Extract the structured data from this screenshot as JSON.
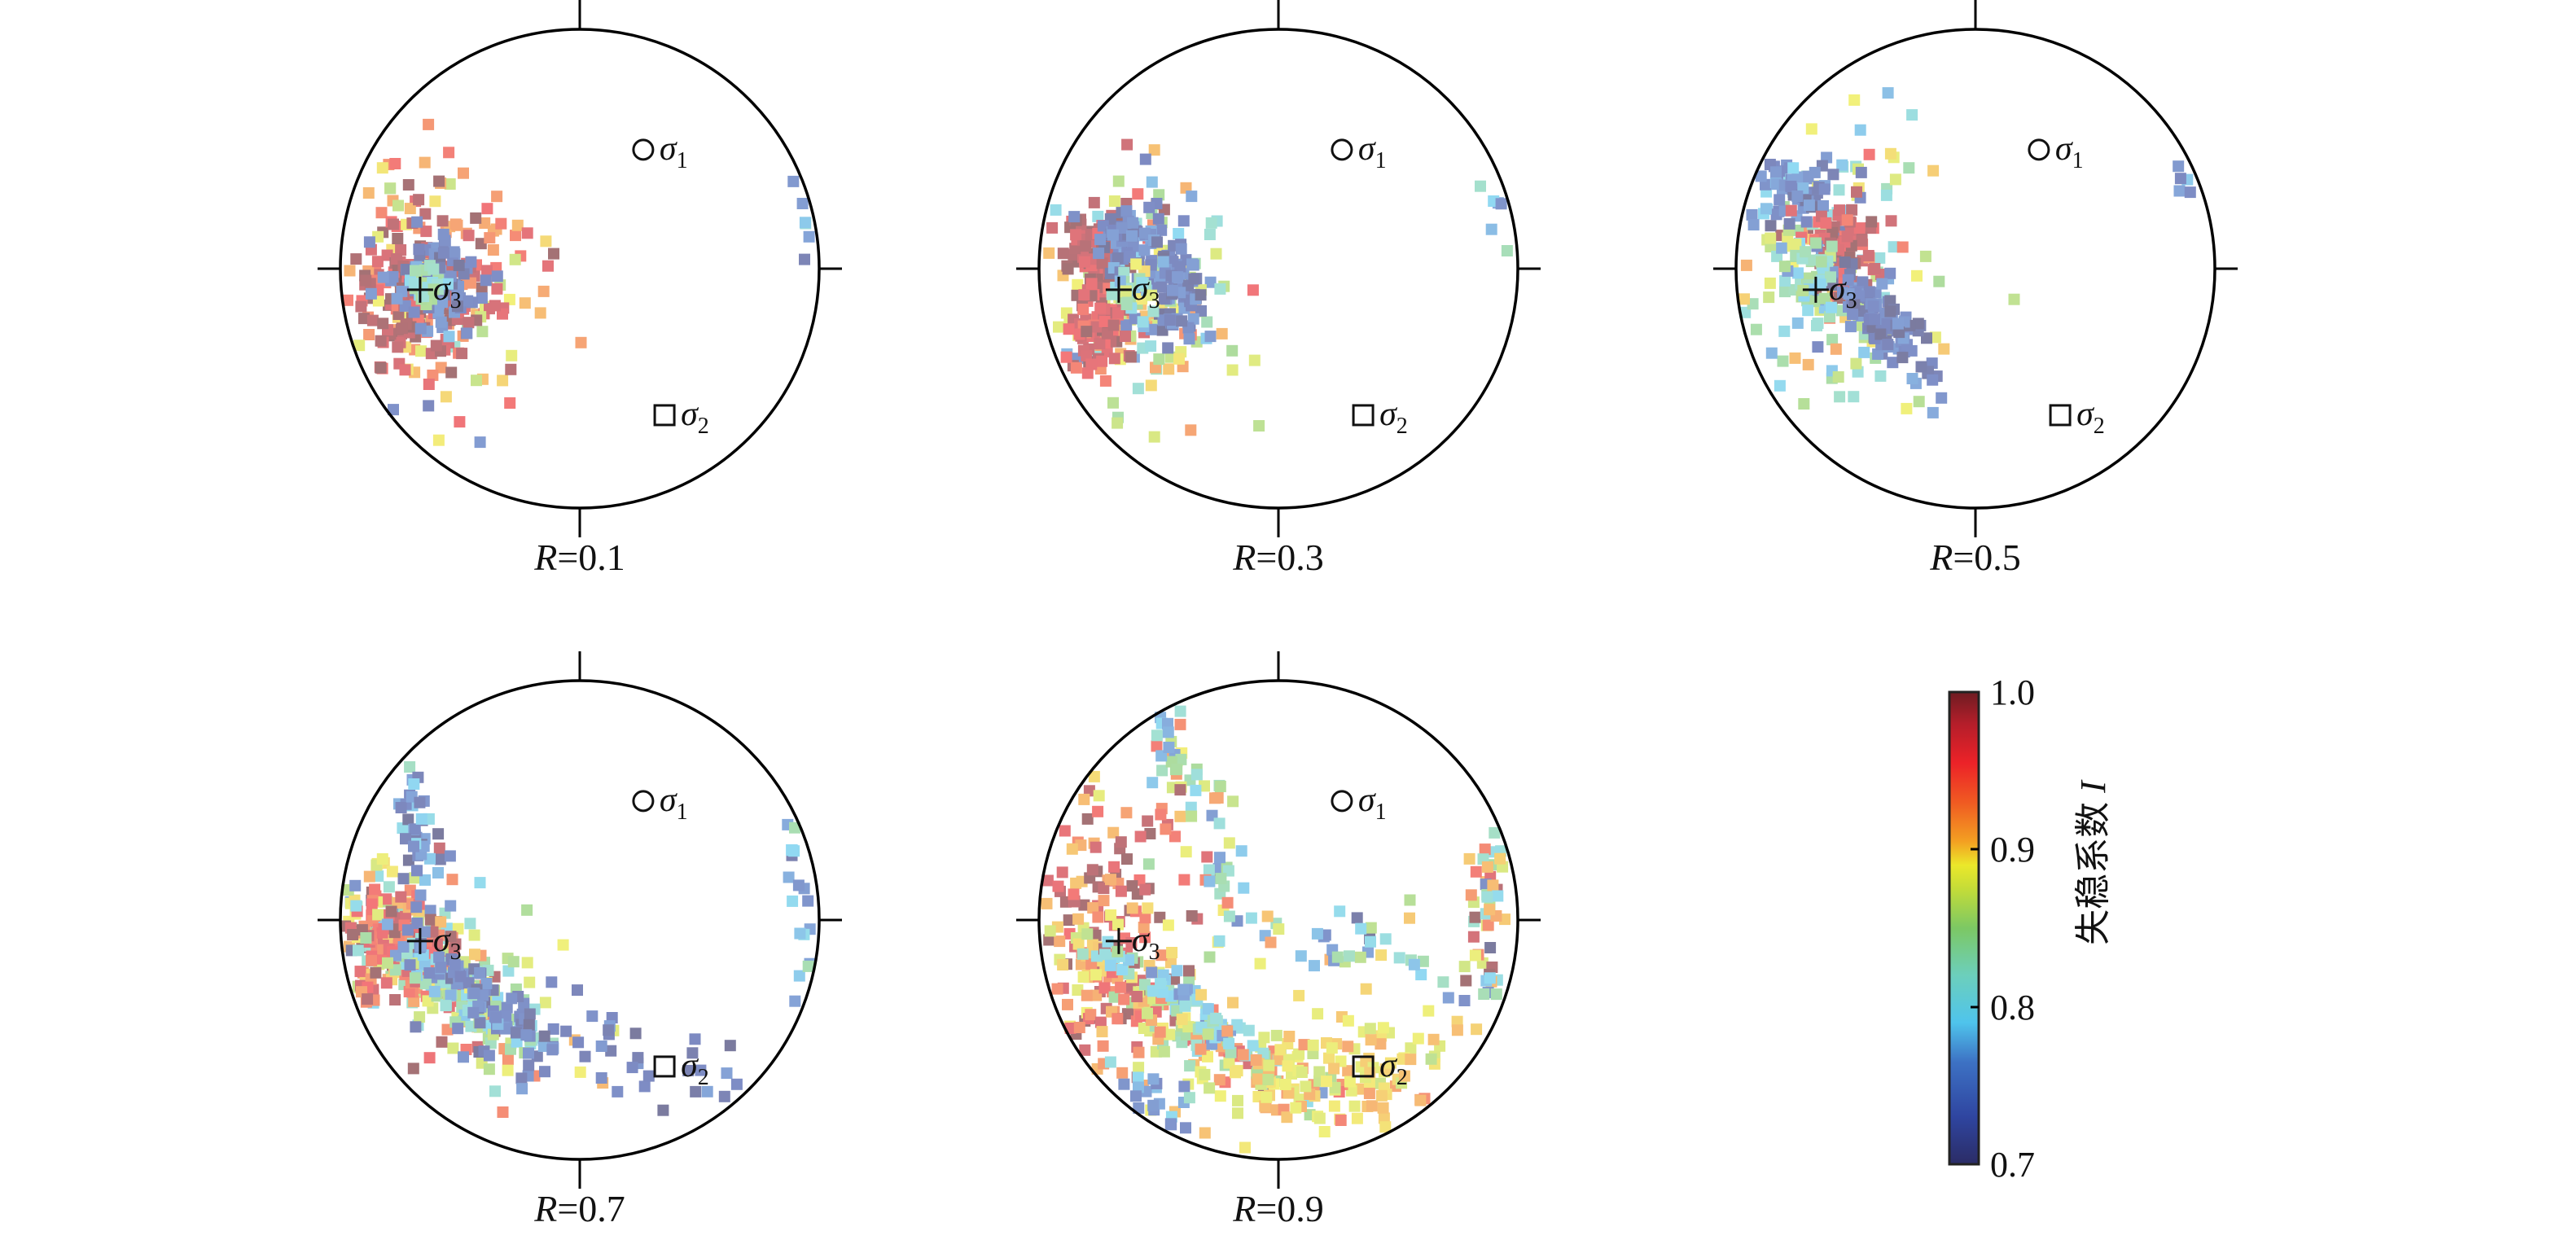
{
  "chart_data": {
    "type": "scatter",
    "title": "",
    "projection": "stereonet (unit circle, x east, y north)",
    "xlim": [
      -1,
      1
    ],
    "ylim": [
      -1,
      1
    ],
    "grid": false,
    "point_marker": "square",
    "colorbar": {
      "label": "失稳系数",
      "label_var": "I",
      "range": [
        0.7,
        1.0
      ],
      "tick_labels": [
        "1.0",
        "0.9",
        "0.8",
        "0.7"
      ],
      "tick_values": [
        1.0,
        0.9,
        0.8,
        0.7
      ],
      "stops": [
        {
          "v": 0.7,
          "c": "#2b2c66"
        },
        {
          "v": 0.73,
          "c": "#2f45a0"
        },
        {
          "v": 0.765,
          "c": "#3d72c4"
        },
        {
          "v": 0.79,
          "c": "#4fc4ec"
        },
        {
          "v": 0.82,
          "c": "#6ccfbc"
        },
        {
          "v": 0.85,
          "c": "#7cc864"
        },
        {
          "v": 0.875,
          "c": "#c4dc38"
        },
        {
          "v": 0.89,
          "c": "#ebe82a"
        },
        {
          "v": 0.905,
          "c": "#f3a022"
        },
        {
          "v": 0.93,
          "c": "#f05a22"
        },
        {
          "v": 0.955,
          "c": "#ec2228"
        },
        {
          "v": 0.98,
          "c": "#b41e2a"
        },
        {
          "v": 1.0,
          "c": "#6e1c22"
        }
      ]
    },
    "stress_markers": [
      {
        "name": "σ",
        "sub": "1",
        "symbol": "circle",
        "x": 0.265,
        "y": 0.497
      },
      {
        "name": "σ",
        "sub": "2",
        "symbol": "square",
        "x": 0.354,
        "y": -0.612
      },
      {
        "name": "σ",
        "sub": "3",
        "symbol": "cross",
        "x": -0.667,
        "y": -0.088
      }
    ],
    "panels": [
      {
        "param": "R",
        "value_text": "=0.1",
        "R": 0.1,
        "clusters": [
          {
            "cx": -0.62,
            "cy": -0.12,
            "sx": 0.24,
            "sy": 0.3,
            "ang": 0,
            "n": 150,
            "v": 0.925,
            "vsd": 0.04
          },
          {
            "cx": -0.7,
            "cy": -0.12,
            "sx": 0.13,
            "sy": 0.16,
            "ang": 0,
            "n": 130,
            "v": 0.985,
            "vsd": 0.015
          },
          {
            "cx": -0.6,
            "cy": -0.06,
            "sx": 0.09,
            "sy": 0.1,
            "ang": 0,
            "n": 90,
            "v": 0.74,
            "vsd": 0.02
          },
          {
            "cx": -0.64,
            "cy": -0.08,
            "sx": 0.04,
            "sy": 0.04,
            "ang": 0,
            "n": 25,
            "v": 0.83,
            "vsd": 0.03
          },
          {
            "cx": 0.93,
            "cy": 0.12,
            "sx": 0.03,
            "sy": 0.15,
            "ang": 0,
            "n": 6,
            "v": 0.78,
            "vsd": 0.05
          },
          {
            "cx": -0.55,
            "cy": -0.65,
            "sx": 0.1,
            "sy": 0.05,
            "ang": 0,
            "n": 3,
            "v": 0.75,
            "vsd": 0.02
          }
        ]
      },
      {
        "param": "R",
        "value_text": "=0.3",
        "R": 0.3,
        "clusters": [
          {
            "cx": -0.6,
            "cy": -0.15,
            "sx": 0.22,
            "sy": 0.3,
            "ang": 0,
            "n": 140,
            "v": 0.88,
            "vsd": 0.05
          },
          {
            "cx": -0.78,
            "cy": 0.08,
            "sx": 0.08,
            "sy": 0.1,
            "ang": 0,
            "n": 70,
            "v": 0.985,
            "vsd": 0.015
          },
          {
            "cx": -0.76,
            "cy": -0.26,
            "sx": 0.08,
            "sy": 0.1,
            "ang": 0,
            "n": 70,
            "v": 0.97,
            "vsd": 0.02
          },
          {
            "cx": -0.62,
            "cy": 0.12,
            "sx": 0.08,
            "sy": 0.07,
            "ang": 0,
            "n": 70,
            "v": 0.74,
            "vsd": 0.02
          },
          {
            "cx": -0.42,
            "cy": -0.1,
            "sx": 0.06,
            "sy": 0.12,
            "ang": 0,
            "n": 80,
            "v": 0.735,
            "vsd": 0.02
          },
          {
            "cx": -0.6,
            "cy": -0.08,
            "sx": 0.06,
            "sy": 0.05,
            "ang": 0,
            "n": 25,
            "v": 0.83,
            "vsd": 0.03
          },
          {
            "cx": 0.92,
            "cy": 0.35,
            "sx": 0.03,
            "sy": 0.2,
            "ang": 0,
            "n": 6,
            "v": 0.81,
            "vsd": 0.04
          }
        ]
      },
      {
        "param": "R",
        "value_text": "=0.5",
        "R": 0.5,
        "clusters": [
          {
            "cx": -0.6,
            "cy": 0.0,
            "sx": 0.22,
            "sy": 0.3,
            "ang": 0,
            "n": 150,
            "v": 0.85,
            "vsd": 0.06
          },
          {
            "cx": -0.75,
            "cy": 0.3,
            "sx": 0.1,
            "sy": 0.07,
            "ang": 0,
            "n": 60,
            "v": 0.74,
            "vsd": 0.02
          },
          {
            "cx": -0.55,
            "cy": 0.08,
            "sx": 0.08,
            "sy": 0.1,
            "ang": 0,
            "n": 80,
            "v": 0.975,
            "vsd": 0.02
          },
          {
            "cx": -0.4,
            "cy": -0.22,
            "sx": 0.16,
            "sy": 0.05,
            "ang": -50,
            "n": 110,
            "v": 0.73,
            "vsd": 0.02
          },
          {
            "cx": -0.68,
            "cy": -0.05,
            "sx": 0.06,
            "sy": 0.08,
            "ang": 0,
            "n": 40,
            "v": 0.82,
            "vsd": 0.03
          },
          {
            "cx": 0.88,
            "cy": 0.5,
            "sx": 0.03,
            "sy": 0.12,
            "ang": 0,
            "n": 5,
            "v": 0.75,
            "vsd": 0.02
          }
        ]
      },
      {
        "param": "R",
        "value_text": "=0.7",
        "R": 0.7,
        "clusters": [
          {
            "cx": -0.7,
            "cy": -0.15,
            "sx": 0.35,
            "sy": 0.14,
            "ang": -35,
            "n": 180,
            "v": 0.88,
            "vsd": 0.06
          },
          {
            "cx": -0.75,
            "cy": -0.12,
            "sx": 0.12,
            "sy": 0.12,
            "ang": 0,
            "n": 120,
            "v": 0.96,
            "vsd": 0.03
          },
          {
            "cx": -0.5,
            "cy": -0.3,
            "sx": 0.22,
            "sy": 0.05,
            "ang": -35,
            "n": 90,
            "v": 0.82,
            "vsd": 0.03
          },
          {
            "cx": -0.42,
            "cy": -0.3,
            "sx": 0.22,
            "sy": 0.04,
            "ang": -40,
            "n": 70,
            "v": 0.74,
            "vsd": 0.02
          },
          {
            "cx": -0.72,
            "cy": 0.45,
            "sx": 0.2,
            "sy": 0.05,
            "ang": -70,
            "n": 40,
            "v": 0.75,
            "vsd": 0.03
          },
          {
            "cx": 0.1,
            "cy": -0.55,
            "sx": 0.35,
            "sy": 0.1,
            "ang": -10,
            "n": 55,
            "v": 0.73,
            "vsd": 0.02
          },
          {
            "cx": 0.92,
            "cy": 0.1,
            "sx": 0.03,
            "sy": 0.35,
            "ang": 0,
            "n": 18,
            "v": 0.77,
            "vsd": 0.03
          }
        ]
      },
      {
        "param": "R",
        "value_text": "=0.9",
        "R": 0.9,
        "clusters": [
          {
            "cx": -0.75,
            "cy": 0.0,
            "sx": 0.15,
            "sy": 0.35,
            "ang": 0,
            "n": 150,
            "v": 0.95,
            "vsd": 0.04
          },
          {
            "cx": -0.35,
            "cy": 0.5,
            "sx": 0.3,
            "sy": 0.06,
            "ang": -70,
            "n": 60,
            "v": 0.86,
            "vsd": 0.07
          },
          {
            "cx": -0.45,
            "cy": -0.4,
            "sx": 0.3,
            "sy": 0.07,
            "ang": -35,
            "n": 140,
            "v": 0.9,
            "vsd": 0.05
          },
          {
            "cx": -0.35,
            "cy": -0.38,
            "sx": 0.25,
            "sy": 0.04,
            "ang": -38,
            "n": 70,
            "v": 0.8,
            "vsd": 0.03
          },
          {
            "cx": 0.2,
            "cy": -0.65,
            "sx": 0.35,
            "sy": 0.12,
            "ang": 0,
            "n": 150,
            "v": 0.895,
            "vsd": 0.02
          },
          {
            "cx": 0.3,
            "cy": -0.1,
            "sx": 0.35,
            "sy": 0.08,
            "ang": -10,
            "n": 50,
            "v": 0.82,
            "vsd": 0.06
          },
          {
            "cx": 0.88,
            "cy": 0.05,
            "sx": 0.05,
            "sy": 0.35,
            "ang": 0,
            "n": 40,
            "v": 0.85,
            "vsd": 0.08
          },
          {
            "cx": -0.55,
            "cy": -0.75,
            "sx": 0.1,
            "sy": 0.06,
            "ang": 0,
            "n": 20,
            "v": 0.76,
            "vsd": 0.03
          }
        ]
      }
    ]
  }
}
